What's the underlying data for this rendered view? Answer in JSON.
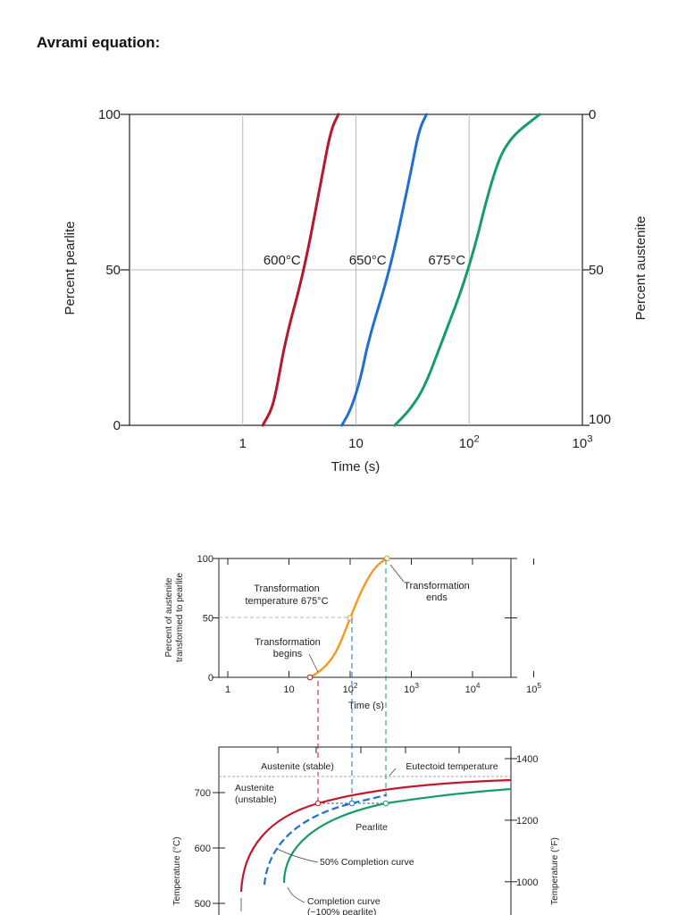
{
  "heading": "Avrami equation:",
  "chart_data": [
    {
      "type": "line",
      "xscale": "log",
      "xlim": [
        0.1,
        1000
      ],
      "ylim": [
        0,
        100
      ],
      "xlabel": "Time (s)",
      "ylabel": "Percent pearlite",
      "ylabel_right": "Percent austenite",
      "xticks": [
        {
          "v": 1,
          "label": "1"
        },
        {
          "v": 10,
          "label": "10"
        },
        {
          "v": 100,
          "label": "10",
          "sup": "2"
        },
        {
          "v": 1000,
          "label": "10",
          "sup": "3"
        }
      ],
      "yticks": [
        0,
        50,
        100
      ],
      "yticks_right": [
        {
          "v": 100,
          "label": "0"
        },
        {
          "v": 50,
          "label": "50"
        },
        {
          "v": 0,
          "label": "100"
        }
      ],
      "grid": true,
      "series": [
        {
          "name": "600°C",
          "color": "#b5172b",
          "points": [
            [
              1.5,
              0
            ],
            [
              1.8,
              5
            ],
            [
              2.0,
              12
            ],
            [
              2.4,
              28
            ],
            [
              3.5,
              50
            ],
            [
              5.0,
              80
            ],
            [
              6.0,
              95
            ],
            [
              7.0,
              100
            ]
          ]
        },
        {
          "name": "650°C",
          "color": "#1f6fd1",
          "points": [
            [
              7.5,
              0
            ],
            [
              9,
              5
            ],
            [
              11,
              15
            ],
            [
              13,
              28
            ],
            [
              20,
              50
            ],
            [
              30,
              80
            ],
            [
              36,
              95
            ],
            [
              42,
              100
            ]
          ]
        },
        {
          "name": "675°C",
          "color": "#169b6a",
          "points": [
            [
              22,
              0
            ],
            [
              30,
              5
            ],
            [
              40,
              12
            ],
            [
              55,
              25
            ],
            [
              100,
              50
            ],
            [
              160,
              80
            ],
            [
              220,
              92
            ],
            [
              420,
              100
            ]
          ]
        }
      ]
    },
    {
      "type": "line",
      "xscale": "log",
      "xlim": [
        0.1,
        100000
      ],
      "ylim": [
        0,
        100
      ],
      "xlabel": "Time (s)",
      "ylabel": "Percent of austenite transformed to pearlite",
      "xticks": [
        {
          "v": 1,
          "label": "1"
        },
        {
          "v": 10,
          "label": "10"
        },
        {
          "v": 100,
          "label": "10",
          "sup": "2"
        },
        {
          "v": 1000,
          "label": "10",
          "sup": "3"
        },
        {
          "v": 10000,
          "label": "10",
          "sup": "4"
        },
        {
          "v": 100000,
          "label": "10",
          "sup": "5"
        }
      ],
      "yticks": [
        0,
        50,
        100
      ],
      "series": [
        {
          "name": "",
          "color": "#f29a1e",
          "points": [
            [
              22,
              0
            ],
            [
              30,
              4
            ],
            [
              45,
              12
            ],
            [
              65,
              25
            ],
            [
              100,
              50
            ],
            [
              150,
              72
            ],
            [
              220,
              88
            ],
            [
              300,
              96
            ],
            [
              400,
              100
            ]
          ]
        }
      ],
      "annotations": {
        "temperature": "Transformation temperature 675°C",
        "begins": "Transformation begins",
        "ends": "Transformation ends"
      }
    },
    {
      "type": "line",
      "xscale": "log",
      "ylabel": "Temperature (°C)",
      "ylabel_right": "Temperature (°F)",
      "yticks": [
        500,
        600,
        700
      ],
      "yticks_right": [
        1000,
        1200,
        1400
      ],
      "labels": {
        "austenite_stable": "Austenite (stable)",
        "eutectoid": "Eutectoid temperature",
        "austenite_unstable": "Austenite (unstable)",
        "pearlite": "Pearlite",
        "fifty": "50% Completion curve",
        "completion": "Completion curve",
        "completion_sub": "(~100% pearlite)"
      },
      "colors": {
        "start": "#c0192d",
        "fifty": "#1f6fd1",
        "completion": "#169b6a"
      }
    }
  ]
}
